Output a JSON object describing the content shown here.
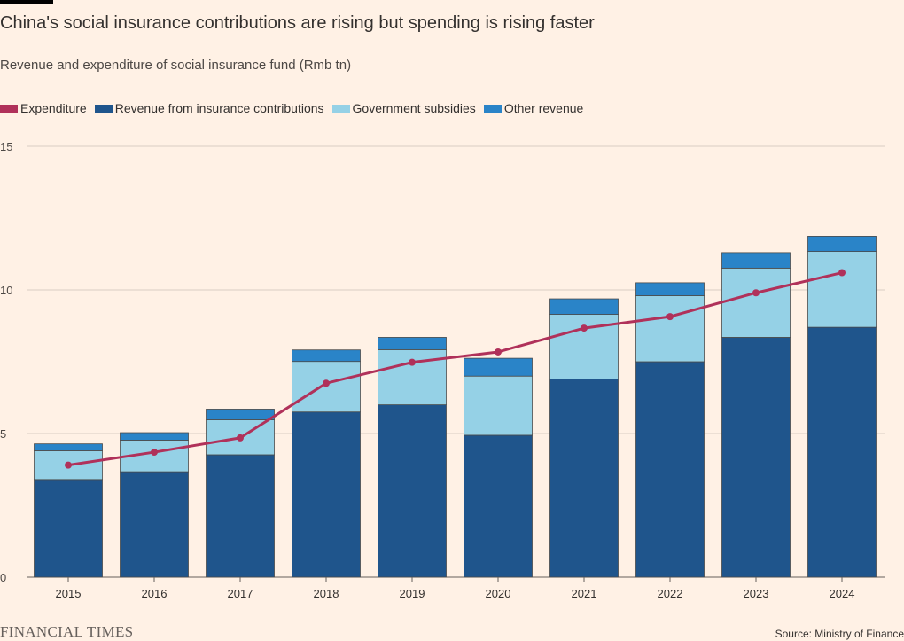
{
  "title": "China's social insurance contributions are rising but spending is rising faster",
  "subtitle": "Revenue and expenditure of social insurance fund (Rmb tn)",
  "legend": [
    {
      "label": "Expenditure",
      "color": "#b0315a"
    },
    {
      "label": "Revenue from insurance contributions",
      "color": "#1f558c"
    },
    {
      "label": "Government subsidies",
      "color": "#95d1e6"
    },
    {
      "label": "Other revenue",
      "color": "#2a84c8"
    }
  ],
  "footer": {
    "logo": "FINANCIAL TIMES",
    "source": "Source: Ministry of Finance"
  },
  "chart_data": {
    "type": "bar",
    "stacked": true,
    "categories": [
      "2015",
      "2016",
      "2017",
      "2018",
      "2019",
      "2020",
      "2021",
      "2022",
      "2023",
      "2024"
    ],
    "series": [
      {
        "name": "Revenue from insurance contributions",
        "color": "#1f558c",
        "values": [
          3.4,
          3.67,
          4.26,
          5.75,
          6.0,
          4.94,
          6.9,
          7.5,
          8.35,
          8.7
        ]
      },
      {
        "name": "Government subsidies",
        "color": "#95d1e6",
        "values": [
          1.0,
          1.1,
          1.22,
          1.76,
          1.92,
          2.06,
          2.25,
          2.3,
          2.41,
          2.64
        ]
      },
      {
        "name": "Other revenue",
        "color": "#2a84c8",
        "values": [
          0.24,
          0.26,
          0.37,
          0.4,
          0.43,
          0.62,
          0.54,
          0.45,
          0.54,
          0.53
        ]
      }
    ],
    "line_series": {
      "name": "Expenditure",
      "color": "#b0315a",
      "values": [
        3.9,
        4.35,
        4.85,
        6.75,
        7.48,
        7.84,
        8.67,
        9.07,
        9.9,
        10.6
      ]
    },
    "yticks": [
      0,
      5,
      10,
      15
    ],
    "ylim": [
      0,
      15
    ],
    "grid": true,
    "legend_position": "top-left",
    "xlabel": "",
    "ylabel": ""
  }
}
